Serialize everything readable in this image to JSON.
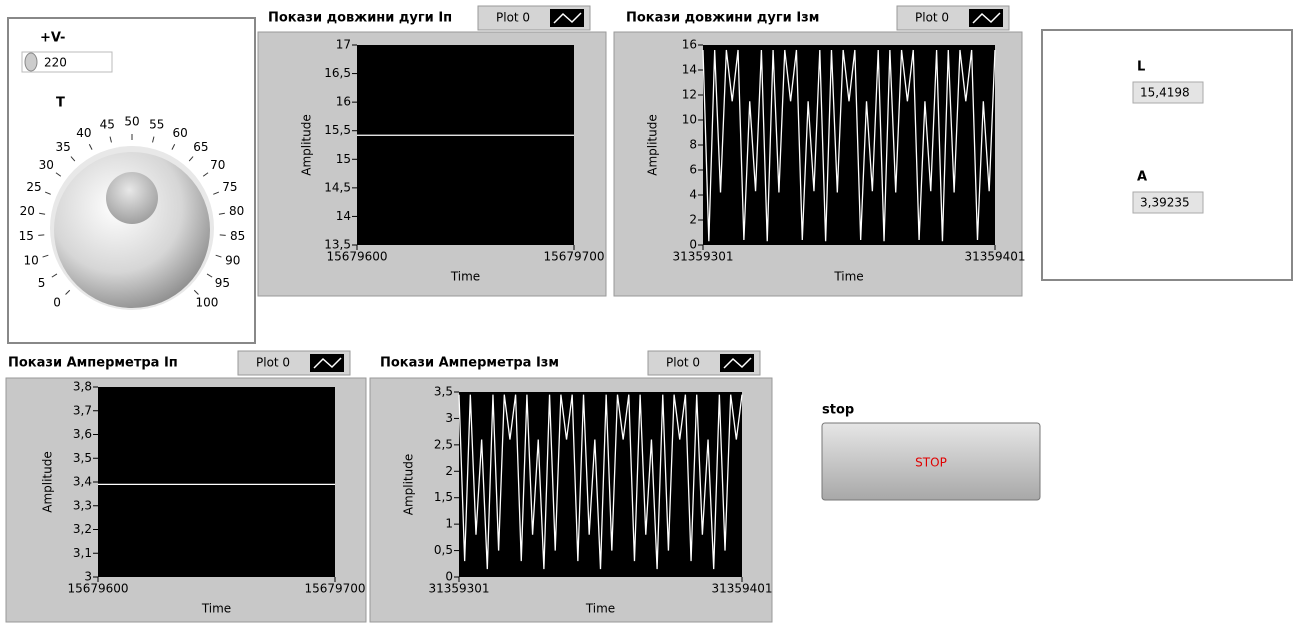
{
  "controls": {
    "voltage": {
      "label": "+V-",
      "value": "220"
    },
    "dial": {
      "label": "T",
      "ticks": [
        0,
        5,
        10,
        15,
        20,
        25,
        30,
        35,
        40,
        45,
        50,
        55,
        60,
        65,
        70,
        75,
        80,
        85,
        90,
        95,
        100
      ]
    },
    "stop": {
      "label": "stop",
      "text": "STOP"
    }
  },
  "indicators": [
    {
      "label": "L",
      "value": "15,4198"
    },
    {
      "label": "A",
      "value": "3,39235"
    }
  ],
  "chart_data": [
    {
      "type": "line",
      "title": "Покази довжини дуги Іп",
      "xlabel": "Time",
      "ylabel": "Amplitude",
      "x": [
        15679600,
        15679700
      ],
      "series": [
        {
          "name": "Plot 0",
          "color": "#ffffff",
          "values": [
            15.42,
            15.42
          ]
        }
      ],
      "xlim": [
        15679600,
        15679700
      ],
      "xticks": [
        15679600,
        15679700
      ],
      "ylim": [
        13.5,
        17
      ],
      "yticks": [
        {
          "value": 13.5,
          "label": "13,5"
        },
        14,
        {
          "value": 14.5,
          "label": "14,5"
        },
        15,
        {
          "value": 15.5,
          "label": "15,5"
        },
        16,
        {
          "value": 16.5,
          "label": "16,5"
        },
        17
      ]
    },
    {
      "type": "line",
      "title": "Покази довжини дуги Ізм",
      "xlabel": "Time",
      "ylabel": "Amplitude",
      "x": [
        31359301,
        31359303,
        31359305,
        31359307,
        31359309,
        31359311,
        31359313,
        31359315,
        31359317,
        31359319,
        31359321,
        31359323,
        31359325,
        31359327,
        31359329,
        31359331,
        31359333,
        31359335,
        31359337,
        31359339,
        31359341,
        31359343,
        31359345,
        31359347,
        31359349,
        31359351,
        31359353,
        31359355,
        31359357,
        31359359,
        31359361,
        31359363,
        31359365,
        31359367,
        31359369,
        31359371,
        31359373,
        31359375,
        31359377,
        31359379,
        31359381,
        31359383,
        31359385,
        31359387,
        31359389,
        31359391,
        31359393,
        31359395,
        31359397,
        31359399,
        31359401
      ],
      "series": [
        {
          "name": "Plot 0",
          "color": "#ffffff",
          "values": [
            15.6,
            0.3,
            15.6,
            4.2,
            15.6,
            11.5,
            15.6,
            0.4,
            11.5,
            4.3,
            15.6,
            0.3,
            15.6,
            4.2,
            15.6,
            11.5,
            15.6,
            0.4,
            11.5,
            4.3,
            15.6,
            0.3,
            15.6,
            4.2,
            15.6,
            11.5,
            15.6,
            0.4,
            11.5,
            4.3,
            15.6,
            0.3,
            15.6,
            4.2,
            15.6,
            11.5,
            15.6,
            0.4,
            11.5,
            4.3,
            15.6,
            0.3,
            15.6,
            4.2,
            15.6,
            11.5,
            15.6,
            0.4,
            11.5,
            4.3,
            15.6
          ]
        }
      ],
      "xlim": [
        31359301,
        31359401
      ],
      "xticks": [
        31359301,
        31359401
      ],
      "ylim": [
        0,
        16
      ],
      "yticks": [
        0,
        2,
        4,
        6,
        8,
        10,
        12,
        14,
        16
      ]
    },
    {
      "type": "line",
      "title": "Покази Амперметра Іп",
      "xlabel": "Time",
      "ylabel": "Amplitude",
      "x": [
        15679600,
        15679700
      ],
      "series": [
        {
          "name": "Plot 0",
          "color": "#ffffff",
          "values": [
            3.39,
            3.39
          ]
        }
      ],
      "xlim": [
        15679600,
        15679700
      ],
      "xticks": [
        15679600,
        15679700
      ],
      "ylim": [
        3,
        3.8
      ],
      "yticks": [
        3,
        {
          "value": 3.1,
          "label": "3,1"
        },
        {
          "value": 3.2,
          "label": "3,2"
        },
        {
          "value": 3.3,
          "label": "3,3"
        },
        {
          "value": 3.4,
          "label": "3,4"
        },
        {
          "value": 3.5,
          "label": "3,5"
        },
        {
          "value": 3.6,
          "label": "3,6"
        },
        {
          "value": 3.7,
          "label": "3,7"
        },
        {
          "value": 3.8,
          "label": "3,8"
        }
      ]
    },
    {
      "type": "line",
      "title": "Покази Амперметра Ізм",
      "xlabel": "Time",
      "ylabel": "Amplitude",
      "x": [
        31359301,
        31359303,
        31359305,
        31359307,
        31359309,
        31359311,
        31359313,
        31359315,
        31359317,
        31359319,
        31359321,
        31359323,
        31359325,
        31359327,
        31359329,
        31359331,
        31359333,
        31359335,
        31359337,
        31359339,
        31359341,
        31359343,
        31359345,
        31359347,
        31359349,
        31359351,
        31359353,
        31359355,
        31359357,
        31359359,
        31359361,
        31359363,
        31359365,
        31359367,
        31359369,
        31359371,
        31359373,
        31359375,
        31359377,
        31359379,
        31359381,
        31359383,
        31359385,
        31359387,
        31359389,
        31359391,
        31359393,
        31359395,
        31359397,
        31359399,
        31359401
      ],
      "series": [
        {
          "name": "Plot 0",
          "color": "#ffffff",
          "values": [
            3.45,
            0.3,
            3.45,
            0.8,
            2.6,
            0.15,
            3.45,
            0.5,
            3.45,
            2.6,
            3.45,
            0.3,
            3.45,
            0.8,
            2.6,
            0.15,
            3.45,
            0.5,
            3.45,
            2.6,
            3.45,
            0.3,
            3.45,
            0.8,
            2.6,
            0.15,
            3.45,
            0.5,
            3.45,
            2.6,
            3.45,
            0.3,
            3.45,
            0.8,
            2.6,
            0.15,
            3.45,
            0.5,
            3.45,
            2.6,
            3.45,
            0.3,
            3.45,
            0.8,
            2.6,
            0.15,
            3.45,
            0.5,
            3.45,
            2.6,
            3.45
          ]
        }
      ],
      "xlim": [
        31359301,
        31359401
      ],
      "xticks": [
        31359301,
        31359401
      ],
      "ylim": [
        0,
        3.5
      ],
      "yticks": [
        0,
        {
          "value": 0.5,
          "label": "0,5"
        },
        1,
        {
          "value": 1.5,
          "label": "1,5"
        },
        2,
        {
          "value": 2.5,
          "label": "2,5"
        },
        3,
        {
          "value": 3.5,
          "label": "3,5"
        }
      ]
    }
  ]
}
